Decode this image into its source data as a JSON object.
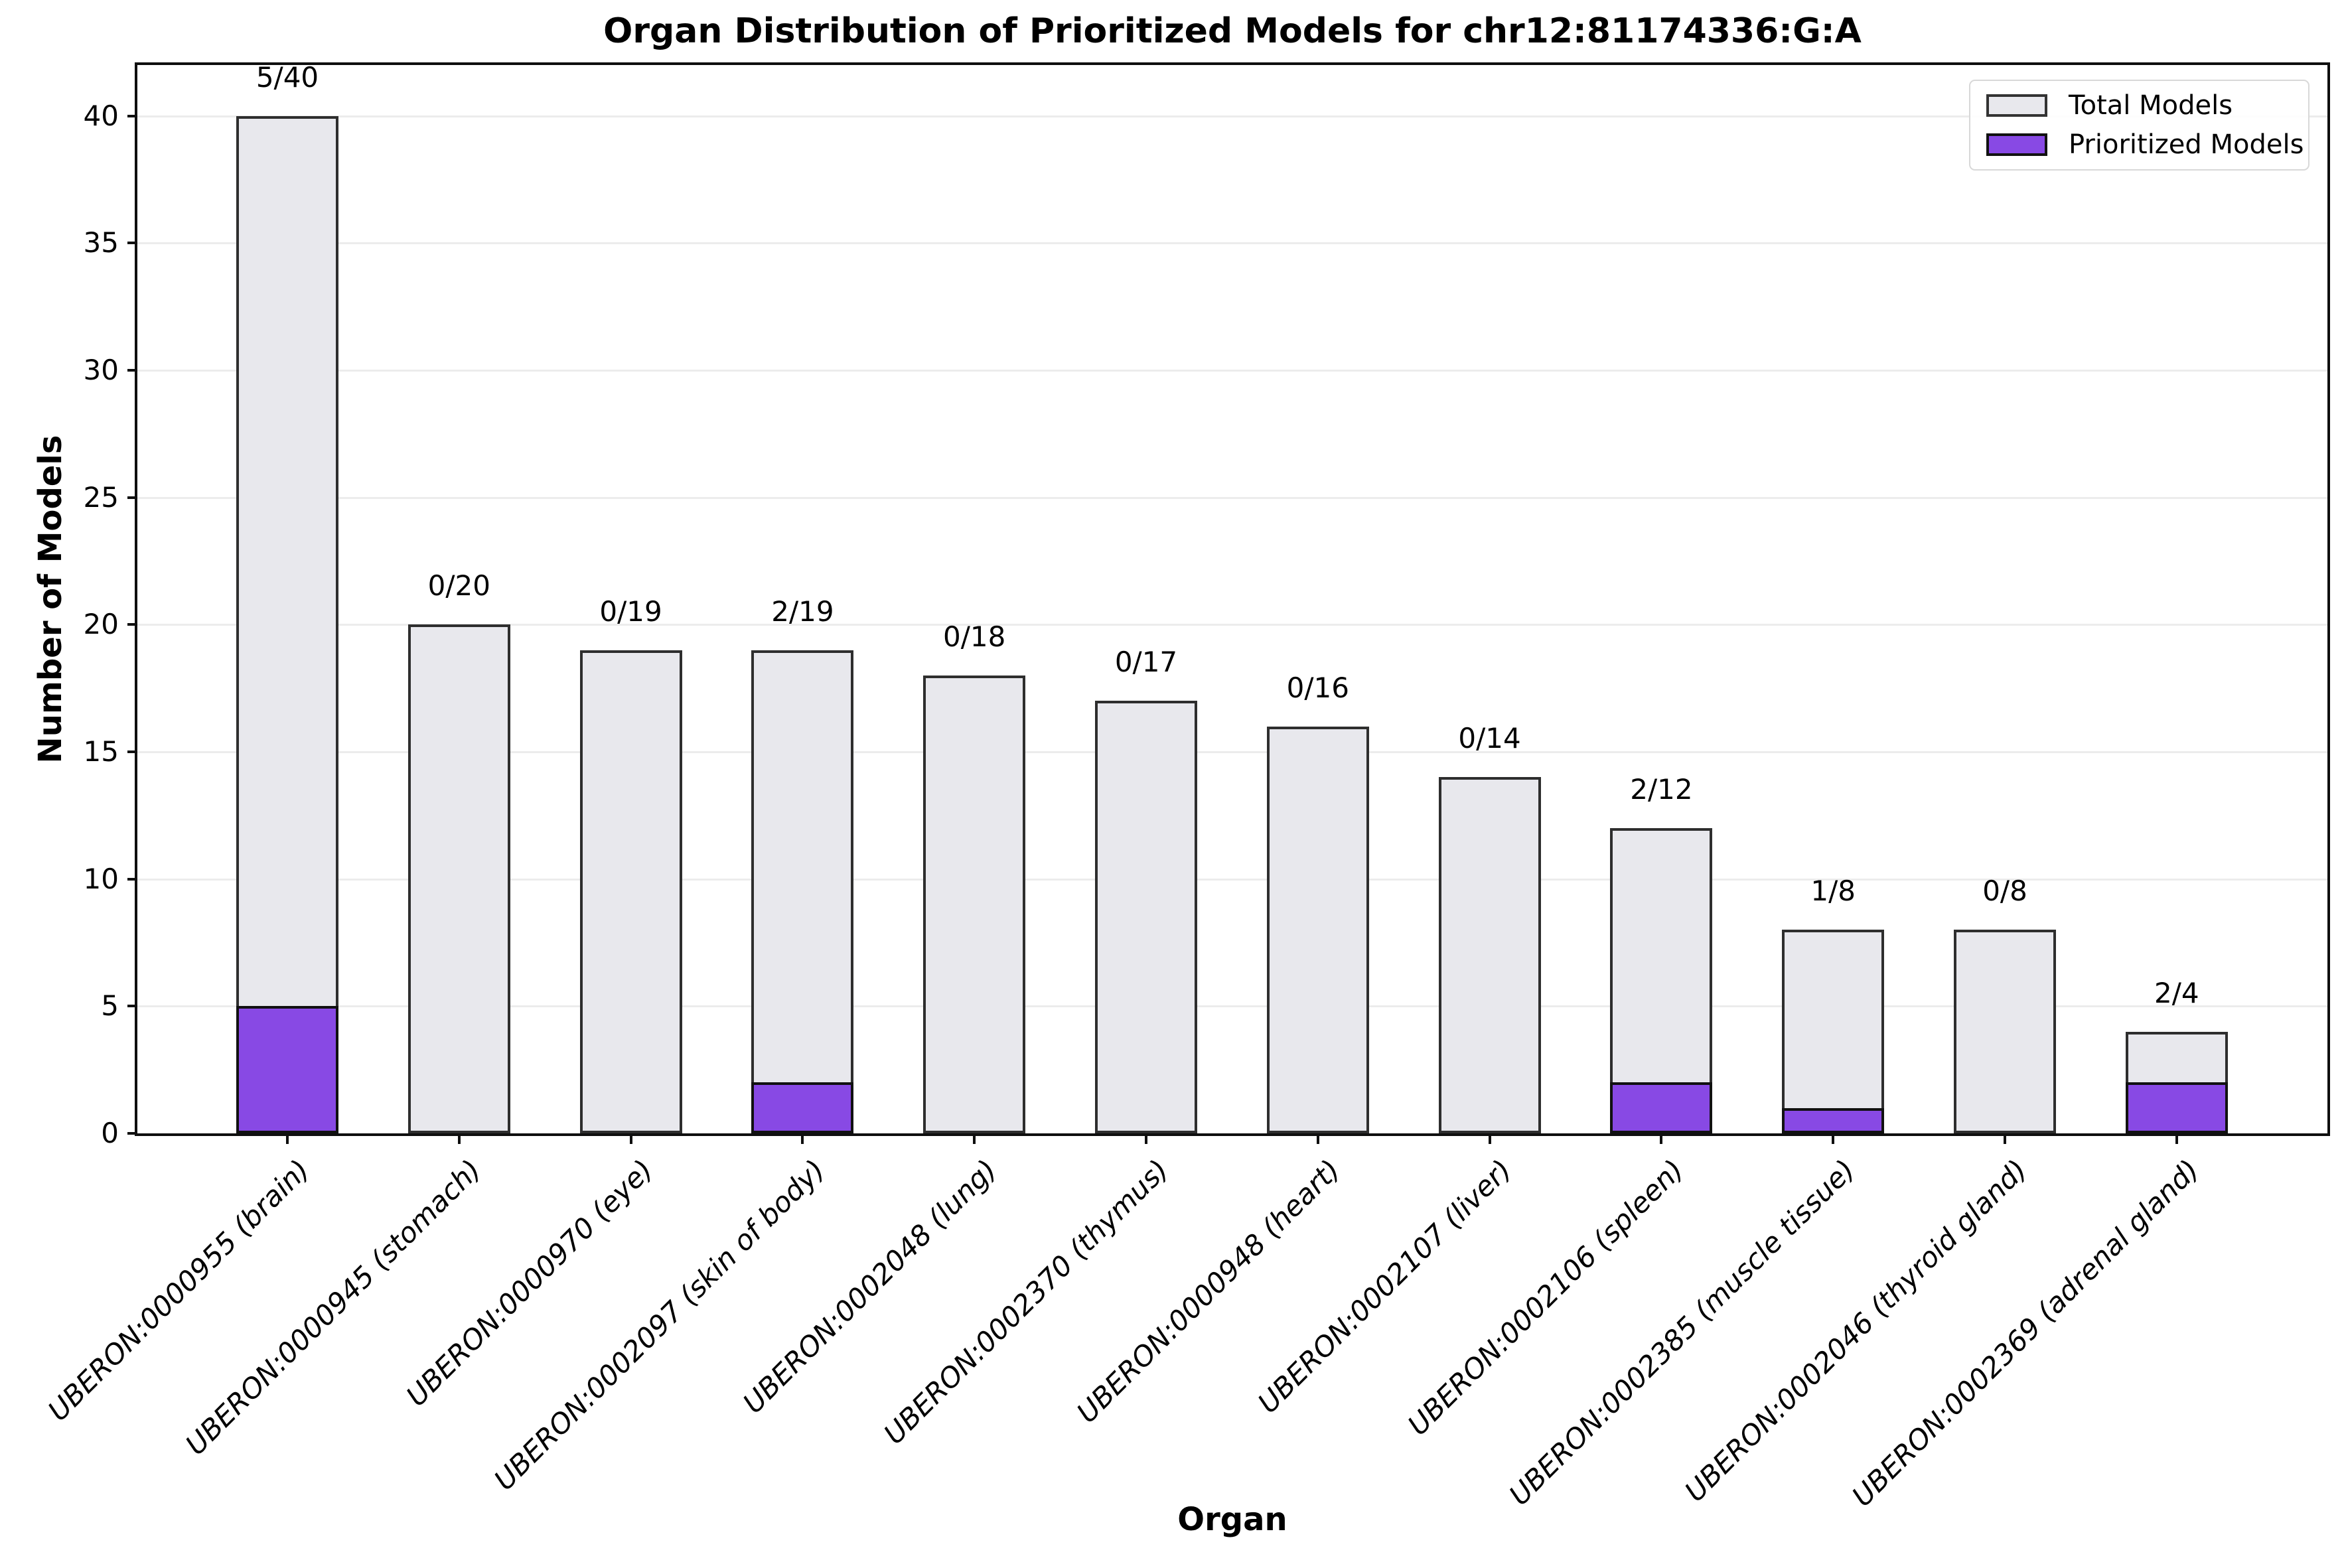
{
  "title": "Organ Distribution of Prioritized Models for chr12:81174336:G:A",
  "chart_data": {
    "type": "bar",
    "title": "Organ Distribution of Prioritized Models for chr12:81174336:G:A",
    "xlabel": "Organ",
    "ylabel": "Number of Models",
    "ylim": [
      0,
      42
    ],
    "yticks": [
      0,
      5,
      10,
      15,
      20,
      25,
      30,
      35,
      40
    ],
    "grid": true,
    "legend_position": "upper right",
    "categories": [
      "UBERON:0000955 (brain)",
      "UBERON:0000945 (stomach)",
      "UBERON:0000970 (eye)",
      "UBERON:0002097 (skin of body)",
      "UBERON:0002048 (lung)",
      "UBERON:0002370 (thymus)",
      "UBERON:0000948 (heart)",
      "UBERON:0002107 (liver)",
      "UBERON:0002106 (spleen)",
      "UBERON:0002385 (muscle tissue)",
      "UBERON:0002046 (thyroid gland)",
      "UBERON:0002369 (adrenal gland)"
    ],
    "series": [
      {
        "name": "Total Models",
        "values": [
          40,
          20,
          19,
          19,
          18,
          17,
          16,
          14,
          12,
          8,
          8,
          4
        ],
        "color": "#e8e8ed",
        "edge_color": "#2e2e2e"
      },
      {
        "name": "Prioritized Models",
        "values": [
          5,
          0,
          0,
          2,
          0,
          0,
          0,
          0,
          2,
          1,
          0,
          2
        ],
        "color": "#8849e4",
        "edge_color": "#111111"
      }
    ],
    "bar_labels": [
      "5/40",
      "0/20",
      "0/19",
      "2/19",
      "0/18",
      "0/17",
      "0/16",
      "0/14",
      "2/12",
      "1/8",
      "0/8",
      "2/4"
    ]
  }
}
